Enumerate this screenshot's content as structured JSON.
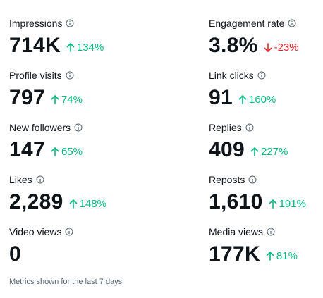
{
  "metrics": [
    {
      "label": "Impressions",
      "value": "714K",
      "change": "134%"
    },
    {
      "label": "Engagement rate",
      "value": "3.8%",
      "change": "-23%"
    },
    {
      "label": "Profile visits",
      "value": "797",
      "change": "74%"
    },
    {
      "label": "Link clicks",
      "value": "91",
      "change": "160%"
    },
    {
      "label": "New followers",
      "value": "147",
      "change": "65%"
    },
    {
      "label": "Replies",
      "value": "409",
      "change": "227%"
    },
    {
      "label": "Likes",
      "value": "2,289",
      "change": "148%"
    },
    {
      "label": "Reposts",
      "value": "1,610",
      "change": "191%"
    },
    {
      "label": "Video views",
      "value": "0"
    },
    {
      "label": "Media views",
      "value": "177K",
      "change": "81%"
    }
  ],
  "footer": "Metrics shown for the last 7 days"
}
